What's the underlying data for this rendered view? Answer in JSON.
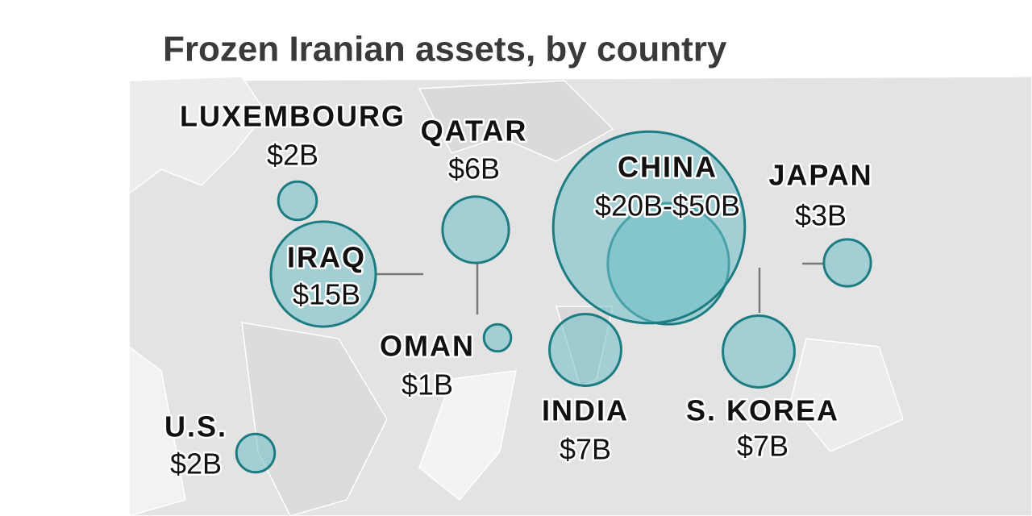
{
  "title": "Frozen Iranian assets, by country",
  "bubbles": [
    {
      "name": "LUXEMBOURG",
      "label": "$2B",
      "values": [
        2
      ]
    },
    {
      "name": "QATAR",
      "label": "$6B",
      "values": [
        6
      ]
    },
    {
      "name": "CHINA",
      "label": "$20B-$50B",
      "values": [
        20,
        50
      ]
    },
    {
      "name": "JAPAN",
      "label": "$3B",
      "values": [
        3
      ]
    },
    {
      "name": "IRAQ",
      "label": "$15B",
      "values": [
        15
      ]
    },
    {
      "name": "OMAN",
      "label": "$1B",
      "values": [
        1
      ]
    },
    {
      "name": "INDIA",
      "label": "$7B",
      "values": [
        7
      ]
    },
    {
      "name": "S. KOREA",
      "label": "$7B",
      "values": [
        7
      ]
    },
    {
      "name": "U.S.",
      "label": "$2B",
      "values": [
        2
      ]
    }
  ]
}
